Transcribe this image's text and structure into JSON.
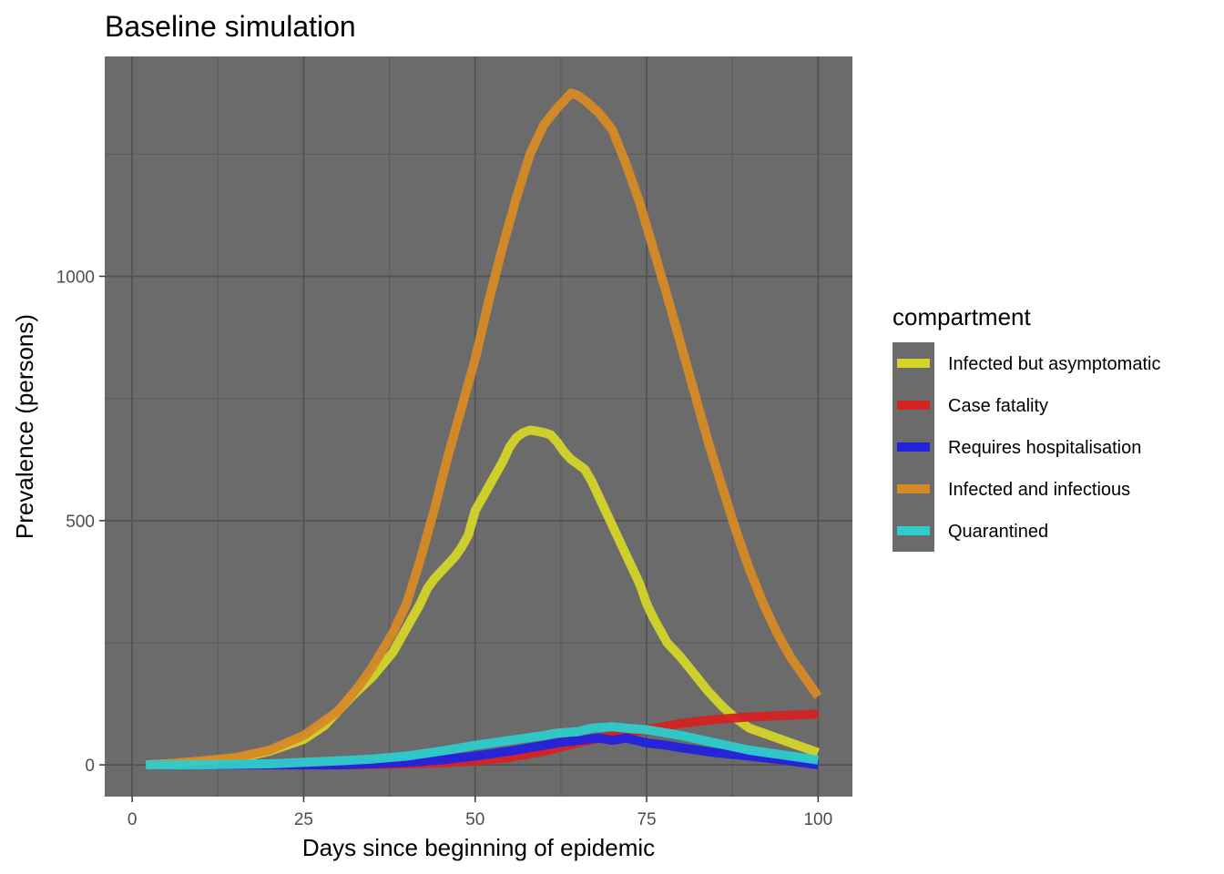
{
  "chart_data": {
    "type": "line",
    "title": "Baseline simulation",
    "xlabel": "Days since beginning of epidemic",
    "ylabel": "Prevalence (persons)",
    "xlim": [
      -4,
      105
    ],
    "ylim": [
      -65,
      1450
    ],
    "x_ticks": [
      0,
      25,
      50,
      75,
      100
    ],
    "y_ticks": [
      0,
      500,
      1000
    ],
    "grid": true,
    "background": "#6b6b6b",
    "legend_title": "compartment",
    "legend_position": "right",
    "series": [
      {
        "name": "Infected but asymptomatic",
        "color": "#d4d429",
        "x": [
          2,
          5,
          10,
          15,
          20,
          25,
          28,
          30,
          32,
          35,
          38,
          40,
          42,
          43,
          44,
          45,
          46,
          47,
          48,
          49,
          50,
          52,
          54,
          55,
          56,
          57,
          58,
          59,
          60,
          61,
          62,
          63,
          64,
          65,
          66,
          67,
          70,
          72,
          74,
          75,
          76,
          78,
          80,
          82,
          84,
          86,
          88,
          90,
          92,
          94,
          96,
          98,
          100
        ],
        "y": [
          0,
          2,
          5,
          12,
          28,
          52,
          80,
          110,
          140,
          180,
          230,
          280,
          330,
          360,
          380,
          395,
          410,
          425,
          445,
          470,
          520,
          570,
          620,
          650,
          670,
          680,
          685,
          683,
          680,
          676,
          660,
          640,
          625,
          615,
          605,
          580,
          490,
          430,
          370,
          330,
          300,
          250,
          220,
          185,
          150,
          120,
          95,
          75,
          65,
          55,
          45,
          35,
          25
        ]
      },
      {
        "name": "Case fatality",
        "color": "#d42222",
        "x": [
          2,
          10,
          20,
          30,
          35,
          40,
          45,
          50,
          55,
          60,
          65,
          70,
          75,
          80,
          85,
          90,
          95,
          100
        ],
        "y": [
          0,
          0,
          0,
          0,
          1,
          2,
          4,
          8,
          15,
          28,
          45,
          60,
          72,
          85,
          93,
          98,
          101,
          104
        ]
      },
      {
        "name": "Requires hospitalisation",
        "color": "#2222dd",
        "x": [
          2,
          10,
          20,
          30,
          35,
          40,
          45,
          50,
          55,
          60,
          62,
          65,
          68,
          70,
          72,
          75,
          78,
          80,
          85,
          90,
          95,
          100
        ],
        "y": [
          0,
          0,
          0,
          0,
          2,
          5,
          10,
          18,
          28,
          40,
          45,
          50,
          55,
          50,
          55,
          45,
          40,
          35,
          25,
          18,
          10,
          0
        ]
      },
      {
        "name": "Infected and infectious",
        "color": "#d68a26",
        "x": [
          2,
          5,
          10,
          15,
          20,
          25,
          30,
          33,
          35,
          38,
          40,
          42,
          44,
          46,
          48,
          50,
          52,
          54,
          56,
          58,
          60,
          62,
          63,
          64,
          65,
          66,
          68,
          70,
          72,
          74,
          76,
          78,
          80,
          82,
          84,
          86,
          88,
          90,
          92,
          94,
          96,
          98,
          100
        ],
        "y": [
          0,
          2,
          8,
          15,
          30,
          60,
          110,
          160,
          200,
          270,
          330,
          420,
          520,
          630,
          730,
          830,
          950,
          1060,
          1160,
          1250,
          1310,
          1345,
          1360,
          1375,
          1370,
          1360,
          1335,
          1300,
          1230,
          1150,
          1055,
          960,
          860,
          760,
          660,
          570,
          480,
          400,
          330,
          270,
          220,
          180,
          140
        ]
      },
      {
        "name": "Quarantined",
        "color": "#2ecccc",
        "x": [
          2,
          10,
          20,
          25,
          30,
          35,
          40,
          45,
          50,
          55,
          60,
          62,
          65,
          67,
          70,
          72,
          75,
          78,
          80,
          85,
          90,
          95,
          100
        ],
        "y": [
          0,
          0,
          2,
          5,
          8,
          12,
          18,
          28,
          40,
          50,
          60,
          65,
          68,
          75,
          78,
          75,
          72,
          65,
          60,
          45,
          30,
          20,
          10
        ]
      }
    ]
  }
}
